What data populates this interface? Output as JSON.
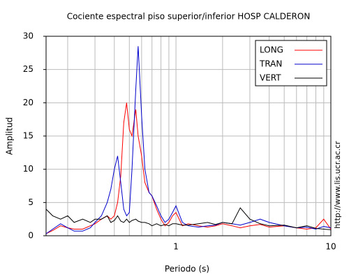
{
  "chart_data": {
    "type": "line",
    "title": "Cociente espectral piso superior/inferior  HOSP CALDERON",
    "x_label": "Periodo (s)",
    "y_label": "Amplitud",
    "annotation": "http://www.lis.ucr.ac.cr",
    "log_x": true,
    "grid": true,
    "legend": "upper right",
    "xlim": [
      0.145,
      10
    ],
    "ylim": [
      0,
      30
    ],
    "xticks": [
      1,
      10
    ],
    "xminor": [
      0.2,
      0.3,
      0.4,
      0.5,
      0.6,
      0.7,
      0.8,
      0.9,
      2,
      3,
      4,
      5,
      6,
      7,
      8,
      9
    ],
    "yticks": [
      0,
      5,
      10,
      15,
      20,
      25,
      30
    ],
    "x": [
      0.145,
      0.16,
      0.18,
      0.2,
      0.22,
      0.25,
      0.28,
      0.3,
      0.33,
      0.36,
      0.38,
      0.4,
      0.42,
      0.44,
      0.46,
      0.48,
      0.5,
      0.52,
      0.55,
      0.57,
      0.6,
      0.63,
      0.67,
      0.7,
      0.75,
      0.8,
      0.85,
      0.9,
      0.95,
      1,
      1.1,
      1.2,
      1.4,
      1.6,
      1.8,
      2,
      2.3,
      2.6,
      3,
      3.5,
      4,
      5,
      6,
      7,
      8,
      9,
      10
    ],
    "series": [
      {
        "name": "LONG",
        "color": "#ff0000",
        "values": [
          0.3,
          0.8,
          1.5,
          1.2,
          1,
          1,
          1.5,
          1.8,
          2.5,
          3,
          2.5,
          3,
          5,
          9,
          17,
          20,
          16,
          15,
          19,
          15,
          12,
          8,
          6.5,
          6,
          4,
          2.5,
          1.5,
          2,
          3,
          3.5,
          1.5,
          1.8,
          1.5,
          1.3,
          1.5,
          1.8,
          1.5,
          1.2,
          1.5,
          1.7,
          1.3,
          1.5,
          1.2,
          1,
          1.2,
          2.5,
          1
        ]
      },
      {
        "name": "TRAN",
        "color": "#0000cc",
        "values": [
          0.3,
          1,
          1.8,
          1.2,
          0.7,
          0.7,
          1.2,
          2,
          3,
          5,
          7,
          10,
          12,
          8,
          4,
          3,
          3.5,
          10,
          22,
          28.5,
          18,
          10,
          6.5,
          6,
          4.5,
          3,
          2,
          2.5,
          3.5,
          4.5,
          2,
          1.5,
          1.3,
          1.5,
          1.6,
          2,
          1.8,
          1.6,
          2,
          2.5,
          2,
          1.5,
          1.2,
          1.3,
          1,
          1.4,
          1.2
        ]
      },
      {
        "name": "VERT",
        "color": "#000000",
        "values": [
          4,
          3,
          2.5,
          3,
          2,
          2.5,
          2,
          2.5,
          2.5,
          3,
          2,
          2.3,
          3,
          2.2,
          2,
          2.5,
          2,
          2.3,
          2.5,
          2.2,
          2,
          2,
          1.8,
          1.5,
          1.8,
          1.5,
          1.7,
          1.5,
          1.8,
          1.8,
          1.6,
          1.6,
          1.8,
          2,
          1.7,
          2,
          1.8,
          4.2,
          2.5,
          1.8,
          1.5,
          1.6,
          1.2,
          1.5,
          1.1,
          1,
          0.9
        ]
      }
    ]
  }
}
